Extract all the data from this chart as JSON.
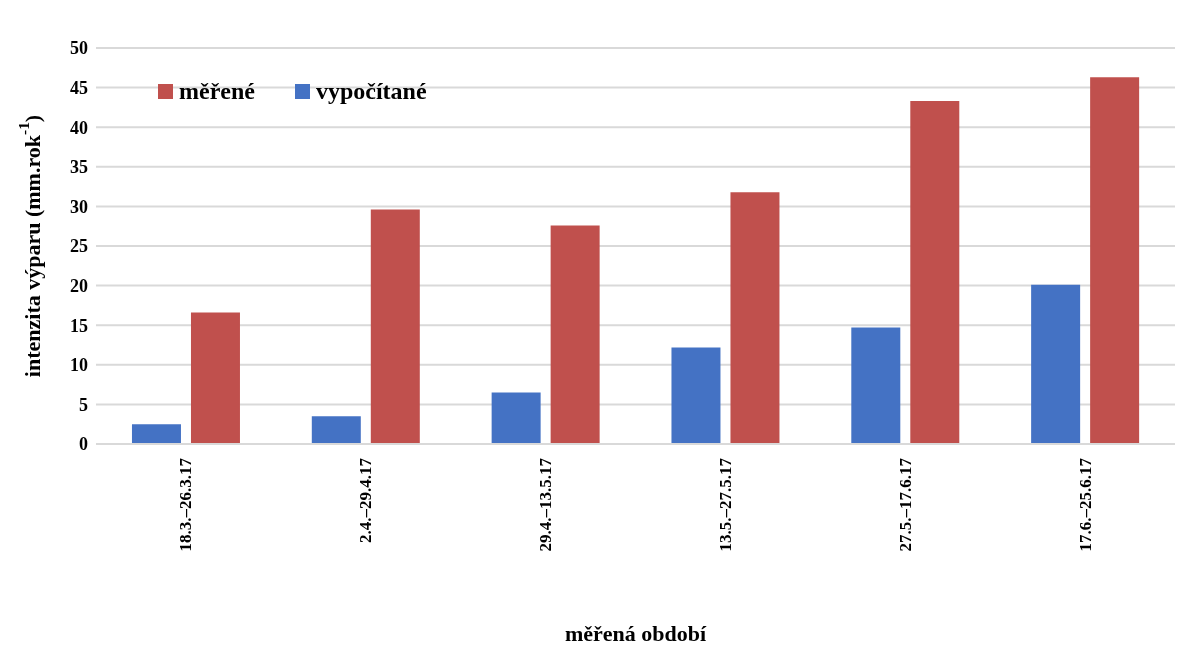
{
  "chart_data": {
    "type": "bar",
    "xlabel": "měřená období",
    "ylabel": "intenzita výparu (mm.rok$^{-1}$)",
    "categories": [
      "18.3.–26.3.17",
      "2.4.–29.4.17",
      "29.4.–13.5.17",
      "13.5.–27.5.17",
      "27.5.–17.6.17",
      "17.6.–25.6.17"
    ],
    "series": [
      {
        "name": "vypočítané",
        "color": "#4472c4",
        "values": [
          2.5,
          3.5,
          6.5,
          12.2,
          14.7,
          20.1
        ]
      },
      {
        "name": "měřené",
        "color": "#c0504d",
        "values": [
          16.6,
          29.6,
          27.6,
          31.8,
          43.3,
          46.3
        ]
      }
    ],
    "ylim": [
      0,
      50
    ],
    "yticks": [
      0,
      5,
      10,
      15,
      20,
      25,
      30,
      35,
      40,
      45,
      50
    ],
    "grid": "y",
    "legend": "top left"
  }
}
